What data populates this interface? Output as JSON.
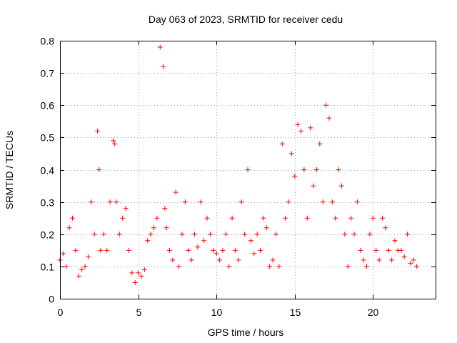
{
  "chart_data": {
    "type": "scatter",
    "title": "Day 063 of 2023, SRMTID for receiver cedu",
    "xlabel": "GPS time / hours",
    "ylabel": "SRMTID / TECUs",
    "xlim": [
      0,
      24
    ],
    "ylim": [
      0,
      0.8
    ],
    "grid": true,
    "marker": "+",
    "series": [
      {
        "name": "SRMTID",
        "color": "#ff0000",
        "x": [
          0.0,
          0.2,
          0.4,
          0.6,
          0.8,
          1.0,
          1.2,
          1.4,
          1.6,
          1.8,
          2.0,
          2.2,
          2.4,
          2.5,
          2.6,
          2.8,
          3.0,
          3.2,
          3.4,
          3.5,
          3.6,
          3.8,
          4.0,
          4.2,
          4.4,
          4.6,
          4.8,
          5.0,
          5.2,
          5.4,
          5.6,
          5.8,
          6.0,
          6.2,
          6.4,
          6.6,
          6.7,
          6.8,
          7.0,
          7.2,
          7.4,
          7.6,
          7.8,
          8.0,
          8.2,
          8.4,
          8.6,
          8.8,
          9.0,
          9.2,
          9.4,
          9.6,
          9.8,
          10.0,
          10.2,
          10.4,
          10.6,
          10.8,
          11.0,
          11.2,
          11.4,
          11.6,
          11.8,
          12.0,
          12.2,
          12.4,
          12.6,
          12.8,
          13.0,
          13.2,
          13.4,
          13.6,
          13.8,
          14.0,
          14.2,
          14.4,
          14.6,
          14.8,
          15.0,
          15.2,
          15.4,
          15.6,
          15.8,
          16.0,
          16.2,
          16.4,
          16.6,
          16.8,
          17.0,
          17.2,
          17.4,
          17.6,
          17.8,
          18.0,
          18.2,
          18.4,
          18.6,
          18.8,
          19.0,
          19.2,
          19.4,
          19.6,
          19.8,
          20.0,
          20.2,
          20.4,
          20.6,
          20.8,
          21.0,
          21.2,
          21.4,
          21.6,
          21.8,
          22.0,
          22.2,
          22.4,
          22.6,
          22.8
        ],
        "y": [
          0.12,
          0.14,
          0.1,
          0.22,
          0.25,
          0.15,
          0.07,
          0.09,
          0.1,
          0.13,
          0.3,
          0.2,
          0.52,
          0.4,
          0.15,
          0.2,
          0.15,
          0.3,
          0.49,
          0.48,
          0.3,
          0.2,
          0.25,
          0.28,
          0.15,
          0.08,
          0.05,
          0.08,
          0.07,
          0.09,
          0.18,
          0.2,
          0.22,
          0.25,
          0.78,
          0.72,
          0.28,
          0.22,
          0.15,
          0.12,
          0.33,
          0.1,
          0.2,
          0.3,
          0.15,
          0.12,
          0.2,
          0.16,
          0.3,
          0.18,
          0.25,
          0.2,
          0.15,
          0.14,
          0.12,
          0.15,
          0.2,
          0.1,
          0.25,
          0.15,
          0.12,
          0.3,
          0.2,
          0.4,
          0.18,
          0.14,
          0.2,
          0.15,
          0.25,
          0.22,
          0.1,
          0.12,
          0.2,
          0.1,
          0.48,
          0.25,
          0.3,
          0.45,
          0.38,
          0.54,
          0.52,
          0.4,
          0.25,
          0.53,
          0.35,
          0.4,
          0.48,
          0.3,
          0.6,
          0.56,
          0.3,
          0.25,
          0.4,
          0.35,
          0.2,
          0.1,
          0.25,
          0.2,
          0.3,
          0.15,
          0.12,
          0.1,
          0.2,
          0.25,
          0.15,
          0.12,
          0.25,
          0.22,
          0.15,
          0.12,
          0.18,
          0.15,
          0.15,
          0.13,
          0.2,
          0.11,
          0.12,
          0.1
        ]
      }
    ]
  }
}
